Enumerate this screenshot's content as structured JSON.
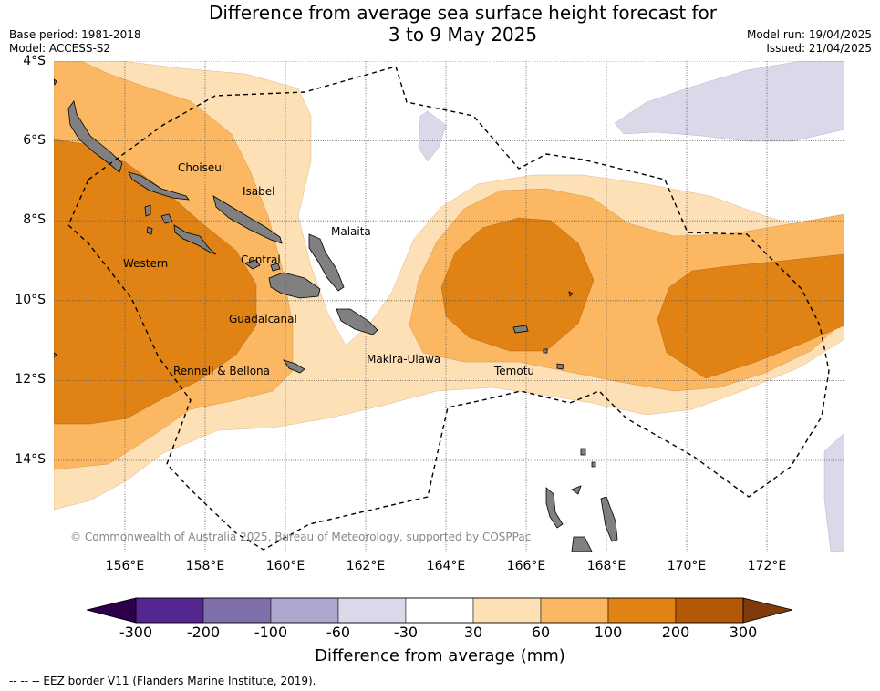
{
  "title_line1": "Difference from average sea surface height forecast for",
  "title_line2": "3 to 9 May 2025",
  "base_period": "Base period: 1981-2018",
  "model": "Model: ACCESS-S2",
  "model_run": "Model run: 19/04/2025",
  "issued": "Issued: 21/04/2025",
  "copyright": "© Commonwealth of Australia 2025, Bureau of Meteorology, supported by COSPPac",
  "lat_labels": [
    "4°S",
    "6°S",
    "8°S",
    "10°S",
    "12°S",
    "14°S"
  ],
  "lon_labels": [
    "156°E",
    "158°E",
    "160°E",
    "162°E",
    "164°E",
    "166°E",
    "168°E",
    "170°E",
    "172°E"
  ],
  "regions": {
    "choiseul": "Choiseul",
    "isabel": "Isabel",
    "malaita": "Malaita",
    "western": "Western",
    "central": "Central",
    "guadalcanal": "Guadalcanal",
    "makira_ulawa": "Makira-Ulawa",
    "rennell_bellona": "Rennell & Bellona",
    "temotu": "Temotu"
  },
  "colorbar": {
    "title": "Difference from average (mm)",
    "ticks": [
      "-300",
      "-200",
      "-100",
      "-60",
      "-30",
      "30",
      "60",
      "100",
      "200",
      "300"
    ],
    "colors": [
      "#54278f",
      "#7f6fa8",
      "#ada6cf",
      "#d9d9ea",
      "#ffffff",
      "#fee0b6",
      "#fbb761",
      "#e08214",
      "#b35806"
    ],
    "under_color": "#2d004b",
    "over_color": "#7f3b08"
  },
  "footnote": "--  --  -- EEZ border V11 (Flanders Marine Institute, 2019)."
}
